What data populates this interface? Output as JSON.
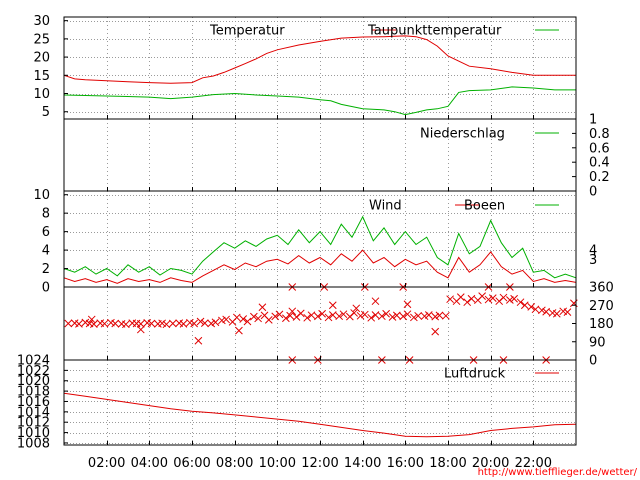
{
  "colors": {
    "temperature": "#e00000",
    "dewpoint": "#00b000",
    "rain": "#00b000",
    "wind": "#e00000",
    "gusts": "#00b000",
    "direction": "#e00000",
    "pressure": "#e00000",
    "grid": "#9a9a9a",
    "credit": "#ff0000"
  },
  "x_axis": {
    "range_h": [
      0,
      24
    ],
    "ticks_h": [
      2,
      4,
      6,
      8,
      10,
      12,
      14,
      16,
      18,
      20,
      22
    ],
    "tick_labels": [
      "02:00",
      "04:00",
      "06:00",
      "08:00",
      "10:00",
      "12:00",
      "14:00",
      "16:00",
      "18:00",
      "20:00",
      "22:00"
    ]
  },
  "credit": "http://www.tiefflieger.de/wetter/",
  "chart_data": [
    {
      "type": "line",
      "panel": "temperature",
      "ylim": [
        3,
        31
      ],
      "grid": true,
      "yticks": [
        5,
        10,
        15,
        20,
        25,
        30
      ],
      "ytick_labels": [
        "5",
        "10",
        "15",
        "20",
        "25",
        "30"
      ],
      "series": [
        {
          "name": "Temperatur",
          "x": [
            0,
            0.5,
            1,
            2,
            3,
            4,
            5,
            6,
            6.5,
            7,
            7.5,
            8,
            8.5,
            9,
            9.5,
            10,
            11,
            12,
            13,
            14,
            15,
            15.5,
            16,
            16.5,
            17,
            17.5,
            18,
            19,
            20,
            21,
            22,
            23,
            24
          ],
          "y": [
            15.0,
            14.0,
            13.8,
            13.5,
            13.2,
            13.0,
            12.8,
            13.0,
            14.3,
            14.8,
            15.8,
            17.0,
            18.2,
            19.5,
            21.0,
            22.0,
            23.3,
            24.3,
            25.2,
            25.5,
            25.6,
            25.7,
            25.8,
            25.6,
            24.8,
            23.0,
            20.3,
            17.5,
            16.8,
            15.8,
            15.0,
            15.0,
            15.0
          ]
        },
        {
          "name": "Taupunkttemperatur",
          "x": [
            0,
            2,
            4,
            5,
            6,
            7,
            8,
            9,
            10,
            11,
            12,
            12.5,
            13,
            14,
            15,
            15.5,
            16,
            16.5,
            17,
            17.5,
            18,
            18.5,
            19,
            20,
            21,
            22,
            23,
            24
          ],
          "y": [
            9.6,
            9.3,
            9.0,
            8.6,
            9.0,
            9.7,
            10.0,
            9.6,
            9.3,
            9.0,
            8.3,
            8.0,
            7.0,
            5.8,
            5.5,
            5.0,
            4.2,
            4.8,
            5.5,
            5.8,
            6.5,
            10.3,
            10.8,
            11.0,
            11.8,
            11.5,
            11.0,
            11.0
          ]
        }
      ]
    },
    {
      "type": "line",
      "panel": "precipitation",
      "ylim": [
        0,
        1
      ],
      "yticks": [
        0,
        0.2,
        0.4,
        0.6,
        0.8,
        1
      ],
      "ytick_labels": [
        "0",
        "0.2",
        "0.4",
        "0.6",
        "0.8",
        "1"
      ],
      "series": [
        {
          "name": "Niederschlag",
          "x": [
            0,
            24
          ],
          "y": [
            0,
            0
          ]
        }
      ]
    },
    {
      "type": "line",
      "panel": "wind",
      "ylim": [
        0,
        10.4
      ],
      "grid": true,
      "yticks": [
        0,
        2,
        4,
        6,
        8,
        10
      ],
      "ytick_labels": [
        "0",
        "2",
        "4",
        "6",
        "8",
        "10"
      ],
      "right_labels": [
        {
          "value": 4,
          "label": "4"
        },
        {
          "value": 3,
          "label": "3"
        }
      ],
      "series": [
        {
          "name": "Wind",
          "x": [
            0,
            0.5,
            1,
            1.5,
            2,
            2.5,
            3,
            3.5,
            4,
            4.5,
            5,
            5.5,
            6,
            6.5,
            7,
            7.5,
            8,
            8.5,
            9,
            9.5,
            10,
            10.5,
            11,
            11.5,
            12,
            12.5,
            13,
            13.5,
            14,
            14.5,
            15,
            15.5,
            16,
            16.5,
            17,
            17.5,
            18,
            18.5,
            19,
            19.5,
            20,
            20.5,
            21,
            21.5,
            22,
            22.5,
            23,
            23.5,
            24
          ],
          "y": [
            1.0,
            0.6,
            0.9,
            0.5,
            0.8,
            0.4,
            0.9,
            0.6,
            0.8,
            0.5,
            1.0,
            0.7,
            0.5,
            1.2,
            1.8,
            2.4,
            1.9,
            2.6,
            2.2,
            2.8,
            3.0,
            2.5,
            3.4,
            2.6,
            3.2,
            2.4,
            3.6,
            2.8,
            4.0,
            2.6,
            3.2,
            2.2,
            3.0,
            2.4,
            2.8,
            1.6,
            1.0,
            3.2,
            1.6,
            2.4,
            3.8,
            2.2,
            1.4,
            1.8,
            0.6,
            0.9,
            0.5,
            0.7,
            0.5
          ]
        },
        {
          "name": "Boeen",
          "x": [
            0,
            0.5,
            1,
            1.5,
            2,
            2.5,
            3,
            3.5,
            4,
            4.5,
            5,
            5.5,
            6,
            6.5,
            7,
            7.5,
            8,
            8.5,
            9,
            9.5,
            10,
            10.5,
            11,
            11.5,
            12,
            12.5,
            13,
            13.5,
            14,
            14.5,
            15,
            15.5,
            16,
            16.5,
            17,
            17.5,
            18,
            18.5,
            19,
            19.5,
            20,
            20.5,
            21,
            21.5,
            22,
            22.5,
            23,
            23.5,
            24
          ],
          "y": [
            2.0,
            1.6,
            2.2,
            1.4,
            2.0,
            1.2,
            2.4,
            1.6,
            2.2,
            1.3,
            2.0,
            1.8,
            1.4,
            2.8,
            3.8,
            4.8,
            4.2,
            5.0,
            4.4,
            5.2,
            5.6,
            4.6,
            6.2,
            4.8,
            6.0,
            4.6,
            6.8,
            5.4,
            7.6,
            5.0,
            6.4,
            4.6,
            6.0,
            4.6,
            5.4,
            3.2,
            2.4,
            5.8,
            3.6,
            4.4,
            7.2,
            4.8,
            3.2,
            4.2,
            1.6,
            1.8,
            1.0,
            1.4,
            1.0
          ]
        }
      ]
    },
    {
      "type": "scatter",
      "panel": "wind-direction",
      "ylim": [
        0,
        360
      ],
      "yticks": [
        0,
        90,
        180,
        270,
        360
      ],
      "ytick_labels": [
        "0",
        "90",
        "180",
        "270",
        "360"
      ],
      "series": [
        {
          "x": [
            0.2,
            0.5,
            0.7,
            1.0,
            1.2,
            1.4,
            1.7,
            1.9,
            2.2,
            2.4,
            2.7,
            2.9,
            3.2,
            3.4,
            3.6,
            3.9,
            4.1,
            4.4,
            4.6,
            4.8,
            5.1,
            5.4,
            5.6,
            5.9,
            6.1,
            6.4,
            6.6,
            6.9,
            7.1,
            7.4,
            7.6,
            7.9,
            8.1,
            8.4,
            8.6,
            8.9,
            9.1,
            9.4,
            9.6,
            9.9,
            10.1,
            10.4,
            10.6,
            10.9,
            11.1,
            11.4,
            11.6,
            11.9,
            12.1,
            12.4,
            12.6,
            12.9,
            13.1,
            13.4,
            13.6,
            13.9,
            14.1,
            14.4,
            14.6,
            14.9,
            15.1,
            15.4,
            15.6,
            15.9,
            16.1,
            16.4,
            16.6,
            16.9,
            17.1,
            17.4,
            17.6,
            17.9,
            18.1,
            18.4,
            18.6,
            18.9,
            19.1,
            19.4,
            19.6,
            19.9,
            20.1,
            20.4,
            20.6,
            20.9,
            21.1,
            21.4,
            21.6,
            21.9,
            22.1,
            22.4,
            22.6,
            22.9,
            23.1,
            23.4,
            23.6,
            23.9,
            1.3,
            3.6,
            6.3,
            8.2,
            9.3,
            10.7,
            12.6,
            13.7,
            14.6,
            16.1,
            17.4,
            10.7,
            11.9,
            14.9,
            16.2,
            19.2,
            20.6,
            22.6,
            10.7,
            12.2,
            14.1,
            15.9,
            19.9,
            20.9
          ],
          "y": [
            180,
            182,
            178,
            185,
            180,
            177,
            182,
            179,
            184,
            180,
            178,
            176,
            182,
            180,
            178,
            183,
            180,
            178,
            181,
            176,
            180,
            182,
            178,
            184,
            180,
            190,
            182,
            180,
            186,
            195,
            200,
            188,
            210,
            202,
            190,
            214,
            205,
            220,
            198,
            215,
            225,
            206,
            219,
            212,
            230,
            208,
            221,
            215,
            228,
            210,
            222,
            216,
            226,
            214,
            232,
            218,
            224,
            208,
            222,
            216,
            228,
            212,
            220,
            215,
            226,
            210,
            218,
            216,
            222,
            214,
            220,
            218,
            300,
            290,
            310,
            285,
            302,
            295,
            315,
            298,
            305,
            290,
            308,
            296,
            302,
            285,
            270,
            262,
            250,
            245,
            238,
            232,
            228,
            240,
            236,
            280,
            200,
            150,
            95,
            145,
            260,
            240,
            270,
            255,
            290,
            275,
            140,
            0,
            0,
            0,
            0,
            0,
            0,
            0,
            360,
            360,
            360,
            360,
            360,
            360
          ]
        }
      ]
    },
    {
      "type": "line",
      "panel": "pressure",
      "ylim": [
        1007.6,
        1024
      ],
      "grid": true,
      "yticks": [
        1008,
        1010,
        1012,
        1014,
        1016,
        1018,
        1020,
        1022,
        1024
      ],
      "ytick_labels": [
        "1008",
        "1010",
        "1012",
        "1014",
        "1016",
        "1018",
        "1020",
        "1022",
        "1024"
      ],
      "series": [
        {
          "name": "Luftdruck",
          "x": [
            0,
            1,
            2,
            3,
            4,
            5,
            6,
            7,
            8,
            9,
            10,
            11,
            12,
            13,
            14,
            15,
            16,
            17,
            18,
            19,
            20,
            21,
            22,
            23,
            24
          ],
          "y": [
            1017.6,
            1017.0,
            1016.4,
            1015.8,
            1015.2,
            1014.6,
            1014.1,
            1013.8,
            1013.4,
            1013.0,
            1012.6,
            1012.2,
            1011.6,
            1011.0,
            1010.4,
            1009.9,
            1009.3,
            1009.2,
            1009.3,
            1009.6,
            1010.4,
            1010.8,
            1011.1,
            1011.5,
            1011.6
          ]
        }
      ]
    }
  ]
}
